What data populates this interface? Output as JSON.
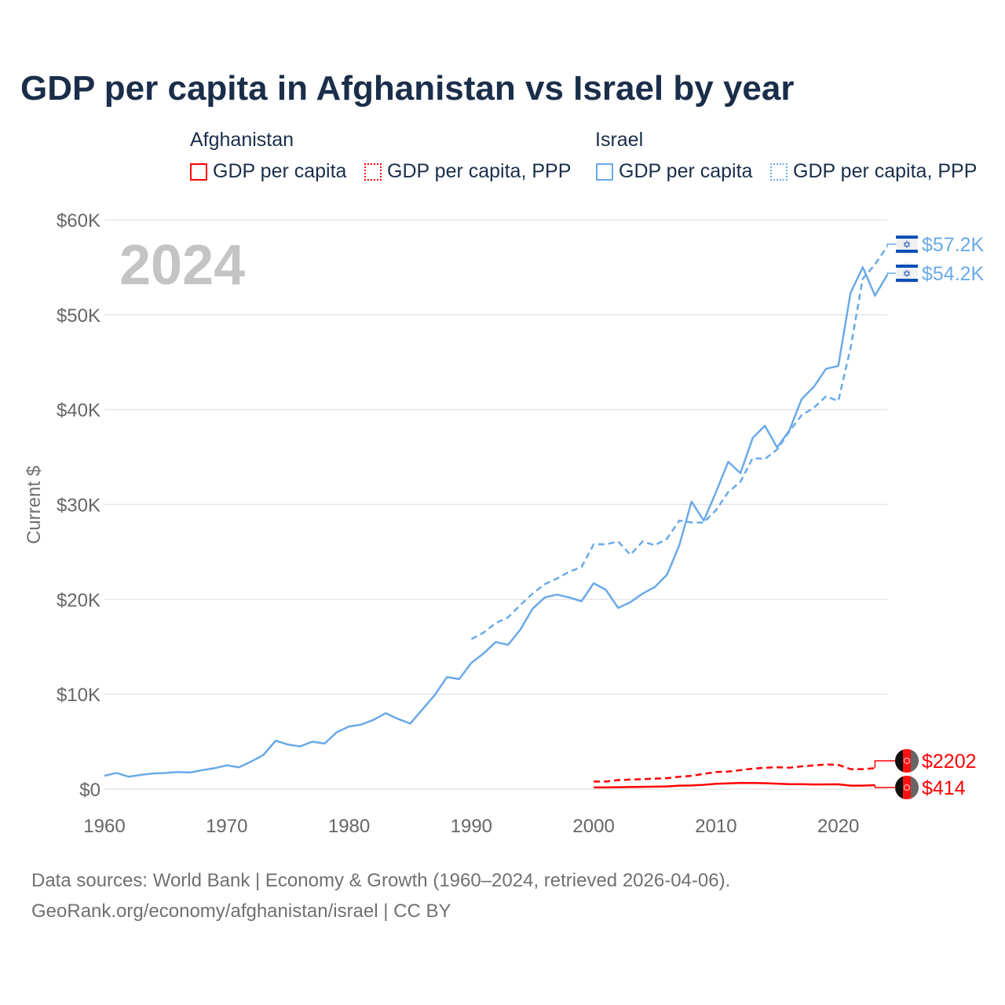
{
  "title": "GDP per capita in Afghanistan vs Israel by year",
  "legend": {
    "afghanistan": {
      "group": "Afghanistan",
      "items": [
        "GDP per capita",
        "GDP per capita, PPP"
      ],
      "color": "#ff0000"
    },
    "israel": {
      "group": "Israel",
      "items": [
        "GDP per capita",
        "GDP per capita, PPP"
      ],
      "color": "#6aaae8"
    }
  },
  "year_watermark": "2024",
  "footer": {
    "line1": "Data sources: World Bank | Economy & Growth (1960–2024, retrieved 2026-04-06).",
    "line2": "GeoRank.org/economy/afghanistan/israel | CC BY"
  },
  "chart_data": {
    "type": "line",
    "title": "GDP per capita in Afghanistan vs Israel by year",
    "xlabel": "",
    "ylabel": "Current $",
    "xlim": [
      1960,
      2024
    ],
    "ylim": [
      0,
      60000
    ],
    "xticks": [
      "1960",
      "1970",
      "1980",
      "1990",
      "2000",
      "2010",
      "2020"
    ],
    "yticks": [
      "$0",
      "$10K",
      "$20K",
      "$30K",
      "$40K",
      "$50K",
      "$60K"
    ],
    "grid": true,
    "legend_position": "top",
    "series": [
      {
        "name": "Israel GDP per capita",
        "country": "Israel",
        "style": "solid",
        "color": "#6aaae8",
        "end_label": "$54.2K",
        "start_year": 1960,
        "values": [
          1400,
          1700,
          1300,
          1500,
          1650,
          1700,
          1800,
          1750,
          2000,
          2200,
          2500,
          2300,
          2900,
          3600,
          5100,
          4700,
          4500,
          5000,
          4800,
          6000,
          6600,
          6800,
          7300,
          8000,
          7400,
          6900,
          8400,
          9900,
          11800,
          11600,
          13300,
          14300,
          15500,
          15200,
          16800,
          19000,
          20200,
          20500,
          20200,
          19800,
          21700,
          21000,
          19100,
          19700,
          20600,
          21300,
          22600,
          25700,
          30300,
          28300,
          31300,
          34500,
          33300,
          37000,
          38300,
          36000,
          37800,
          41100,
          42400,
          44300,
          44600,
          52300,
          55000,
          52000,
          54200
        ]
      },
      {
        "name": "Israel GDP per capita, PPP",
        "country": "Israel",
        "style": "dashed",
        "color": "#6aaae8",
        "end_label": "$57.2K",
        "start_year": 1990,
        "values": [
          15800,
          16500,
          17500,
          18100,
          19400,
          20600,
          21600,
          22200,
          22900,
          23400,
          25800,
          25800,
          26100,
          24700,
          26100,
          25700,
          26400,
          28300,
          28100,
          28100,
          29400,
          31300,
          32400,
          34900,
          34800,
          35800,
          37700,
          39400,
          40200,
          41400,
          40900,
          46500,
          53800,
          55300,
          57200
        ]
      },
      {
        "name": "Afghanistan GDP per capita",
        "country": "Afghanistan",
        "style": "solid",
        "color": "#ff0000",
        "end_label": "$414",
        "start_year": 2000,
        "values": [
          180,
          180,
          200,
          220,
          240,
          260,
          280,
          360,
          380,
          450,
          560,
          600,
          650,
          640,
          620,
          570,
          520,
          520,
          490,
          500,
          510,
          360,
          360,
          414
        ]
      },
      {
        "name": "Afghanistan GDP per capita, PPP",
        "country": "Afghanistan",
        "style": "dashed",
        "color": "#ff0000",
        "end_label": "$2202",
        "start_year": 2000,
        "values": [
          800,
          800,
          950,
          1000,
          1050,
          1100,
          1150,
          1300,
          1400,
          1600,
          1800,
          1850,
          2000,
          2150,
          2250,
          2300,
          2250,
          2400,
          2500,
          2600,
          2550,
          2100,
          2100,
          2202
        ]
      }
    ]
  }
}
